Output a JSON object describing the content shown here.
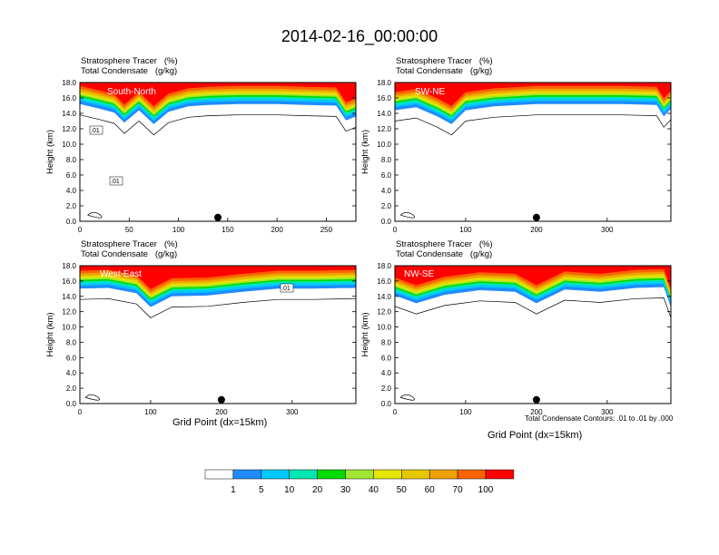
{
  "title": "2014-02-16_00:00:00",
  "header_line1": "Stratosphere Tracer   (%)",
  "header_line2": "Total Condensate   (g/kg)",
  "ylabel": "Height (km)",
  "xlabel": "Grid Point (dx=15km)",
  "contour_note": "Total Condensate Contours: .01 to .01 by .000",
  "colors": {
    "levels": [
      "#ffffff",
      "#1e8cff",
      "#00c8ff",
      "#00e6b4",
      "#00dc00",
      "#a0e632",
      "#e6e600",
      "#e6c800",
      "#f0a000",
      "#fa6400",
      "#ff0000"
    ]
  },
  "chart_data": [
    {
      "type": "heatmap",
      "panel_label": "South-North",
      "xlim": [
        0,
        280
      ],
      "ylim": [
        0,
        18
      ],
      "xticks": [
        "0",
        "50",
        "100",
        "150",
        "200",
        "250"
      ],
      "xtick_values": [
        0,
        50,
        100,
        150,
        200,
        250
      ],
      "yticks": [
        "0.0",
        "2.0",
        "4.0",
        "6.0",
        "8.0",
        "10.0",
        "12.0",
        "14.0",
        "16.0",
        "18.0"
      ],
      "contour_labels": [
        ".01",
        ".01"
      ],
      "marker_x": 140,
      "tropopause": [
        [
          0,
          15.6
        ],
        [
          20,
          15.0
        ],
        [
          35,
          14.5
        ],
        [
          45,
          13.2
        ],
        [
          60,
          14.8
        ],
        [
          75,
          13.0
        ],
        [
          90,
          14.6
        ],
        [
          110,
          15.3
        ],
        [
          130,
          15.5
        ],
        [
          160,
          15.6
        ],
        [
          200,
          15.6
        ],
        [
          230,
          15.5
        ],
        [
          260,
          15.4
        ],
        [
          270,
          13.5
        ],
        [
          280,
          14.0
        ]
      ]
    },
    {
      "type": "heatmap",
      "panel_label": "SW-NE",
      "xlim": [
        0,
        390
      ],
      "ylim": [
        0,
        18
      ],
      "xticks": [
        "0",
        "100",
        "200",
        "300"
      ],
      "xtick_values": [
        0,
        100,
        200,
        300
      ],
      "yticks": [
        "0.0",
        "2.0",
        "4.0",
        "6.0",
        "8.0",
        "10.0",
        "12.0",
        "14.0",
        "16.0",
        "18.0"
      ],
      "contour_labels": [],
      "marker_x": 200,
      "tropopause": [
        [
          0,
          14.8
        ],
        [
          30,
          15.2
        ],
        [
          60,
          14.0
        ],
        [
          80,
          13.0
        ],
        [
          100,
          14.8
        ],
        [
          140,
          15.3
        ],
        [
          200,
          15.6
        ],
        [
          260,
          15.6
        ],
        [
          320,
          15.6
        ],
        [
          370,
          15.5
        ],
        [
          380,
          14.0
        ],
        [
          390,
          15.0
        ]
      ]
    },
    {
      "type": "heatmap",
      "panel_label": "West-East",
      "xlim": [
        0,
        390
      ],
      "ylim": [
        0,
        18
      ],
      "xticks": [
        "0",
        "100",
        "200",
        "300"
      ],
      "xtick_values": [
        0,
        100,
        200,
        300
      ],
      "yticks": [
        "0.0",
        "2.0",
        "4.0",
        "6.0",
        "8.0",
        "10.0",
        "12.0",
        "14.0",
        "16.0",
        "18.0"
      ],
      "contour_labels": [
        ".01"
      ],
      "marker_x": 200,
      "tropopause": [
        [
          0,
          15.4
        ],
        [
          40,
          15.5
        ],
        [
          80,
          14.8
        ],
        [
          100,
          13.0
        ],
        [
          130,
          14.4
        ],
        [
          180,
          14.5
        ],
        [
          230,
          15.0
        ],
        [
          280,
          15.4
        ],
        [
          330,
          15.4
        ],
        [
          390,
          15.5
        ]
      ]
    },
    {
      "type": "heatmap",
      "panel_label": "NW-SE",
      "xlim": [
        0,
        390
      ],
      "ylim": [
        0,
        18
      ],
      "xticks": [
        "0",
        "100",
        "200",
        "300"
      ],
      "xtick_values": [
        0,
        100,
        200,
        300
      ],
      "yticks": [
        "0.0",
        "2.0",
        "4.0",
        "6.0",
        "8.0",
        "10.0",
        "12.0",
        "14.0",
        "16.0",
        "18.0"
      ],
      "contour_labels": [],
      "marker_x": 200,
      "tropopause": [
        [
          0,
          14.5
        ],
        [
          30,
          13.5
        ],
        [
          70,
          14.6
        ],
        [
          120,
          15.2
        ],
        [
          170,
          15.0
        ],
        [
          200,
          13.5
        ],
        [
          240,
          15.3
        ],
        [
          290,
          15.0
        ],
        [
          340,
          15.5
        ],
        [
          380,
          15.6
        ],
        [
          390,
          13.0
        ]
      ]
    }
  ],
  "colorbar": {
    "labels": [
      "1",
      "5",
      "10",
      "20",
      "30",
      "40",
      "50",
      "60",
      "70",
      "100"
    ]
  }
}
